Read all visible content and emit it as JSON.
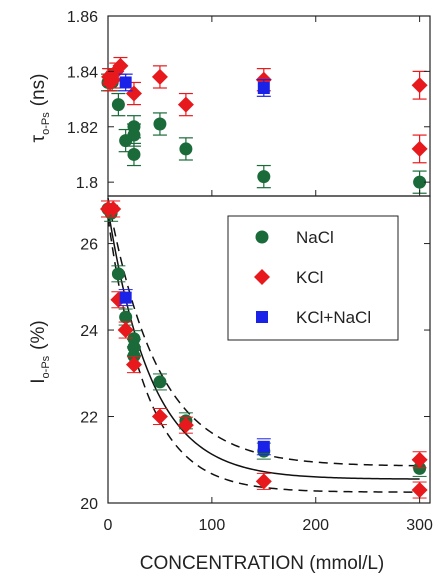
{
  "colors": {
    "NaCl": "#1b6b3a",
    "KCl": "#e8191c",
    "KCl+NaCl": "#1a22e8"
  },
  "chart_data": [
    {
      "type": "scatter",
      "panel": "top",
      "ylabel_main": "τ",
      "ylabel_sub": "o-Ps",
      "ylabel_unit": "(ns)",
      "ylim": [
        1.795,
        1.86
      ],
      "xlim": [
        0,
        310
      ],
      "yticks": [
        1.8,
        1.82,
        1.84,
        1.86
      ],
      "ytick_labels": [
        "1.8",
        "1.82",
        "1.84",
        "1.86"
      ],
      "series": [
        {
          "name": "NaCl",
          "marker": "circle",
          "points": [
            {
              "x": 0,
              "y": 1.836,
              "err": 0.003
            },
            {
              "x": 2,
              "y": 1.838,
              "err": 0.003
            },
            {
              "x": 4,
              "y": 1.836,
              "err": 0.003
            },
            {
              "x": 10,
              "y": 1.828,
              "err": 0.004
            },
            {
              "x": 17,
              "y": 1.815,
              "err": 0.004
            },
            {
              "x": 25,
              "y": 1.817,
              "err": 0.004
            },
            {
              "x": 25,
              "y": 1.82,
              "err": 0.004
            },
            {
              "x": 25,
              "y": 1.81,
              "err": 0.004
            },
            {
              "x": 50,
              "y": 1.821,
              "err": 0.004
            },
            {
              "x": 75,
              "y": 1.812,
              "err": 0.004
            },
            {
              "x": 150,
              "y": 1.802,
              "err": 0.004
            },
            {
              "x": 300,
              "y": 1.8,
              "err": 0.004
            }
          ]
        },
        {
          "name": "KCl",
          "marker": "diamond",
          "points": [
            {
              "x": 1,
              "y": 1.838,
              "err": 0.003
            },
            {
              "x": 2,
              "y": 1.836,
              "err": 0.003
            },
            {
              "x": 5,
              "y": 1.837,
              "err": 0.003
            },
            {
              "x": 8,
              "y": 1.84,
              "err": 0.003
            },
            {
              "x": 12,
              "y": 1.842,
              "err": 0.003
            },
            {
              "x": 25,
              "y": 1.832,
              "err": 0.004
            },
            {
              "x": 50,
              "y": 1.838,
              "err": 0.004
            },
            {
              "x": 75,
              "y": 1.828,
              "err": 0.004
            },
            {
              "x": 150,
              "y": 1.837,
              "err": 0.004
            },
            {
              "x": 300,
              "y": 1.835,
              "err": 0.005
            },
            {
              "x": 300,
              "y": 1.812,
              "err": 0.005
            }
          ]
        },
        {
          "name": "KCl+NaCl",
          "marker": "square",
          "points": [
            {
              "x": 17,
              "y": 1.836,
              "err": 0.003
            },
            {
              "x": 150,
              "y": 1.834,
              "err": 0.003
            }
          ]
        }
      ]
    },
    {
      "type": "scatter",
      "panel": "bottom",
      "xlabel": "CONCENTRATION (mmol/L)",
      "ylabel_main": "I",
      "ylabel_sub": "o-Ps",
      "ylabel_unit": "(%)",
      "xlim": [
        0,
        310
      ],
      "ylim": [
        20,
        27.1
      ],
      "xticks": [
        0,
        100,
        200,
        300
      ],
      "xtick_labels": [
        "0",
        "100",
        "200",
        "300"
      ],
      "yticks": [
        20,
        22,
        24,
        26
      ],
      "ytick_labels": [
        "20",
        "22",
        "24",
        "26"
      ],
      "legend_position": "top-right",
      "fit_curves": [
        "solid",
        "dashed-upper",
        "dashed-lower"
      ],
      "series": [
        {
          "name": "NaCl",
          "marker": "circle",
          "points": [
            {
              "x": 0,
              "y": 26.8
            },
            {
              "x": 3,
              "y": 26.7
            },
            {
              "x": 10,
              "y": 25.3
            },
            {
              "x": 17,
              "y": 24.3
            },
            {
              "x": 25,
              "y": 23.8
            },
            {
              "x": 25,
              "y": 23.6
            },
            {
              "x": 25,
              "y": 23.4
            },
            {
              "x": 50,
              "y": 22.8
            },
            {
              "x": 75,
              "y": 21.9
            },
            {
              "x": 150,
              "y": 21.2
            },
            {
              "x": 300,
              "y": 20.8
            }
          ]
        },
        {
          "name": "KCl",
          "marker": "diamond",
          "points": [
            {
              "x": 0,
              "y": 26.8
            },
            {
              "x": 5,
              "y": 26.8
            },
            {
              "x": 10,
              "y": 24.7
            },
            {
              "x": 17,
              "y": 24.0
            },
            {
              "x": 25,
              "y": 23.2
            },
            {
              "x": 50,
              "y": 22.0
            },
            {
              "x": 75,
              "y": 21.8
            },
            {
              "x": 150,
              "y": 20.5
            },
            {
              "x": 300,
              "y": 21.0
            },
            {
              "x": 300,
              "y": 20.3
            }
          ]
        },
        {
          "name": "KCl+NaCl",
          "marker": "square",
          "points": [
            {
              "x": 17,
              "y": 24.75
            },
            {
              "x": 150,
              "y": 21.3
            }
          ]
        }
      ]
    }
  ]
}
